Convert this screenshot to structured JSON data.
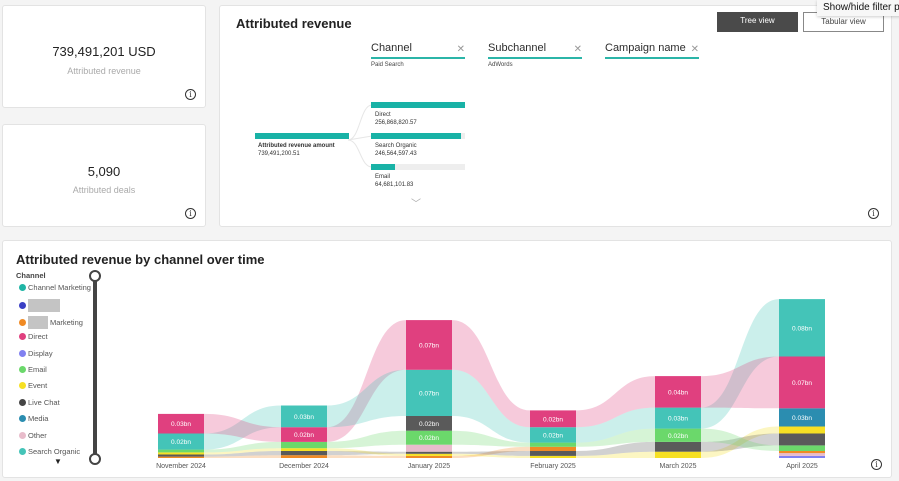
{
  "kpis": [
    {
      "value": "739,491,201 USD",
      "label": "Attributed revenue"
    },
    {
      "value": "5,090",
      "label": "Attributed deals"
    }
  ],
  "tree": {
    "title": "Attributed revenue",
    "tree_view_label": "Tree view",
    "tabular_view_label": "Tabular view",
    "tooltip": "Show/hide filter p",
    "filters": [
      {
        "label": "Channel",
        "value": "Paid Search"
      },
      {
        "label": "Subchannel",
        "value": "AdWords"
      },
      {
        "label": "Campaign name",
        "value": ""
      }
    ],
    "root": {
      "label": "Attributed revenue amount",
      "value": "739,491,200.51",
      "fill": 1.0
    },
    "children": [
      {
        "label": "Direct",
        "value": "256,868,820.57",
        "fill": 1.0
      },
      {
        "label": "Search Organic",
        "value": "246,564,597.43",
        "fill": 0.96
      },
      {
        "label": "Email",
        "value": "64,681,101.83",
        "fill": 0.25
      }
    ]
  },
  "chart": {
    "title": "Attributed revenue by channel over time",
    "legend_title": "Channel",
    "legend": [
      {
        "name": "Channel Marketing",
        "color": "#1fb5a5"
      },
      {
        "name": "",
        "color": "#3a3fc4",
        "redacted": true
      },
      {
        "name": "Marketing",
        "color": "#f08a24",
        "redacted": true
      },
      {
        "name": "Direct",
        "color": "#e0407f"
      },
      {
        "name": "Display",
        "color": "#8080f0"
      },
      {
        "name": "Email",
        "color": "#6bd86b"
      },
      {
        "name": "Event",
        "color": "#f6e024"
      },
      {
        "name": "Live Chat",
        "color": "#444444"
      },
      {
        "name": "Media",
        "color": "#2b8db0"
      },
      {
        "name": "Other",
        "color": "#e8bccb"
      },
      {
        "name": "Search Organic",
        "color": "#44c4b8"
      }
    ]
  },
  "chart_data": {
    "type": "stacked bar with flows",
    "categories": [
      "November 2024",
      "December 2024",
      "January 2025",
      "February 2025",
      "March 2025",
      "April 2025"
    ],
    "unit": "bn",
    "colors": {
      "Direct": "#e0407f",
      "Search Organic": "#44c4b8",
      "Email": "#6bd86b",
      "Event": "#f6e024",
      "Live Chat": "#5a5a5a",
      "Marketing": "#f08a24",
      "Media": "#2b8db0",
      "Other": "#e8bccb",
      "Display": "#8080f0"
    },
    "stacks": [
      [
        {
          "s": "Marketing",
          "v": 0.002
        },
        {
          "s": "Live Chat",
          "v": 0.003
        },
        {
          "s": "Event",
          "v": 0.003
        },
        {
          "s": "Email",
          "v": 0.004
        },
        {
          "s": "Search Organic",
          "v": 0.023,
          "label": "0.02bn"
        },
        {
          "s": "Direct",
          "v": 0.028,
          "label": "0.03bn"
        }
      ],
      [
        {
          "s": "Marketing",
          "v": 0.004
        },
        {
          "s": "Live Chat",
          "v": 0.006
        },
        {
          "s": "Event",
          "v": 0.004
        },
        {
          "s": "Email",
          "v": 0.009
        },
        {
          "s": "Direct",
          "v": 0.021,
          "label": "0.02bn"
        },
        {
          "s": "Search Organic",
          "v": 0.031,
          "label": "0.03bn"
        }
      ],
      [
        {
          "s": "Marketing",
          "v": 0.003
        },
        {
          "s": "Event",
          "v": 0.003
        },
        {
          "s": "Live Chat",
          "v": 0.003
        },
        {
          "s": "Other",
          "v": 0.01
        },
        {
          "s": "Email",
          "v": 0.02,
          "label": "0.02bn"
        },
        {
          "s": "Live Chat",
          "v": 0.021,
          "label": "0.02bn"
        },
        {
          "s": "Search Organic",
          "v": 0.066,
          "label": "0.07bn"
        },
        {
          "s": "Direct",
          "v": 0.071,
          "label": "0.07bn"
        }
      ],
      [
        {
          "s": "Event",
          "v": 0.003
        },
        {
          "s": "Live Chat",
          "v": 0.007
        },
        {
          "s": "Marketing",
          "v": 0.006
        },
        {
          "s": "Email",
          "v": 0.006
        },
        {
          "s": "Search Organic",
          "v": 0.022,
          "label": "0.02bn"
        },
        {
          "s": "Direct",
          "v": 0.024,
          "label": "0.02bn"
        }
      ],
      [
        {
          "s": "Event",
          "v": 0.009
        },
        {
          "s": "Live Chat",
          "v": 0.014
        },
        {
          "s": "Email",
          "v": 0.019,
          "label": "0.02bn"
        },
        {
          "s": "Search Organic",
          "v": 0.03,
          "label": "0.03bn"
        },
        {
          "s": "Direct",
          "v": 0.045,
          "label": "0.04bn"
        }
      ],
      [
        {
          "s": "Display",
          "v": 0.003
        },
        {
          "s": "Other",
          "v": 0.004
        },
        {
          "s": "Marketing",
          "v": 0.003
        },
        {
          "s": "Email",
          "v": 0.008
        },
        {
          "s": "Live Chat",
          "v": 0.017
        },
        {
          "s": "Event",
          "v": 0.01
        },
        {
          "s": "Media",
          "v": 0.026,
          "label": "0.03bn"
        },
        {
          "s": "Direct",
          "v": 0.074,
          "label": "0.07bn"
        },
        {
          "s": "Search Organic",
          "v": 0.082,
          "label": "0.08bn"
        }
      ]
    ]
  }
}
